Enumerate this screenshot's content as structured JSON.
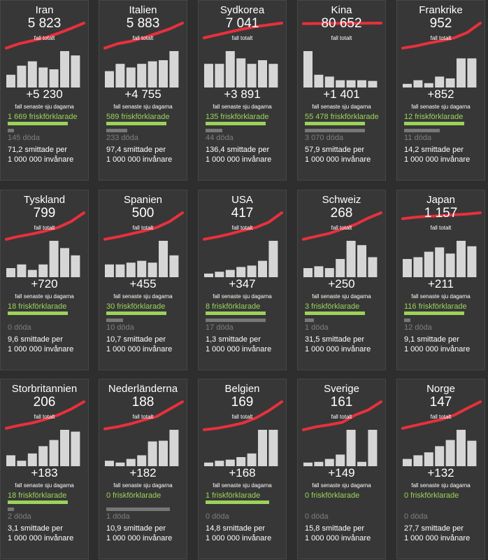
{
  "labels": {
    "total": "fall totalt",
    "week": "fall senaste sju dagarna",
    "recovered_suffix": "friskförklarade",
    "deaths_suffix": "döda",
    "rate_suffix": "smittade per",
    "rate_base": "1 000 000 invånare"
  },
  "colors": {
    "trend": "#e8303d",
    "bar": "#d6d6d6",
    "recovered": "#9bd35a",
    "deaths": "#777777",
    "card": "#373737",
    "background": "#2e2e2e"
  },
  "chart_data": [
    {
      "type": "bar",
      "country": "Iran",
      "total": "5 823",
      "week_new": "+5 230",
      "recovered": "1 669",
      "deaths": "145",
      "rate": "71,2",
      "rec_frac": 0.8,
      "death_frac": 0.08,
      "trend": [
        0.15,
        0.3,
        0.4,
        0.5,
        0.65,
        0.82,
        1.0
      ],
      "values": [
        0.35,
        0.6,
        0.72,
        0.55,
        0.5,
        1.0,
        0.88
      ]
    },
    {
      "type": "bar",
      "country": "Italien",
      "total": "5 883",
      "week_new": "+4 755",
      "recovered": "589",
      "deaths": "233",
      "rate": "97,4",
      "rec_frac": 0.8,
      "death_frac": 0.28,
      "trend": [
        0.15,
        0.3,
        0.38,
        0.5,
        0.65,
        0.8,
        1.0
      ],
      "values": [
        0.45,
        0.65,
        0.55,
        0.65,
        0.72,
        0.75,
        1.0
      ]
    },
    {
      "type": "bar",
      "country": "Sydkorea",
      "total": "7 041",
      "week_new": "+3 891",
      "recovered": "135",
      "deaths": "44",
      "rate": "136,4",
      "rec_frac": 0.8,
      "death_frac": 0.22,
      "trend": [
        0.5,
        0.6,
        0.7,
        0.8,
        0.88,
        0.94,
        1.0
      ],
      "values": [
        0.65,
        0.65,
        1.0,
        0.8,
        0.65,
        0.75,
        0.65
      ]
    },
    {
      "type": "bar",
      "country": "Kina",
      "total": "80 652",
      "week_new": "+1 401",
      "recovered": "55 478",
      "deaths": "3 070",
      "rate": "57,9",
      "rec_frac": 0.8,
      "death_frac": 0.8,
      "trend": [
        0.98,
        0.985,
        0.99,
        0.993,
        0.996,
        0.998,
        1.0
      ],
      "values": [
        1.0,
        0.35,
        0.3,
        0.2,
        0.2,
        0.2,
        0.18
      ]
    },
    {
      "type": "bar",
      "country": "Frankrike",
      "total": "952",
      "week_new": "+852",
      "recovered": "12",
      "deaths": "11",
      "rate": "14,2",
      "rec_frac": 0.8,
      "death_frac": 0.48,
      "trend": [
        0.15,
        0.22,
        0.32,
        0.4,
        0.5,
        0.68,
        1.0
      ],
      "values": [
        0.1,
        0.2,
        0.12,
        0.3,
        0.25,
        0.8,
        0.8
      ]
    },
    {
      "type": "bar",
      "country": "Tyskland",
      "total": "799",
      "week_new": "+720",
      "recovered": "18",
      "deaths": "0",
      "rate": "9,6",
      "rec_frac": 0.8,
      "death_frac": 0.0,
      "trend": [
        0.1,
        0.2,
        0.28,
        0.38,
        0.5,
        0.7,
        1.0
      ],
      "values": [
        0.25,
        0.35,
        0.2,
        0.35,
        1.0,
        0.8,
        0.6
      ]
    },
    {
      "type": "bar",
      "country": "Spanien",
      "total": "500",
      "week_new": "+455",
      "recovered": "30",
      "deaths": "10",
      "rate": "10,7",
      "rec_frac": 0.8,
      "death_frac": 0.22,
      "trend": [
        0.1,
        0.18,
        0.28,
        0.38,
        0.5,
        0.7,
        1.0
      ],
      "values": [
        0.35,
        0.35,
        0.4,
        0.45,
        0.4,
        1.0,
        0.6
      ]
    },
    {
      "type": "bar",
      "country": "USA",
      "total": "417",
      "week_new": "+347",
      "recovered": "8",
      "deaths": "17",
      "rate": "1,3",
      "rec_frac": 0.8,
      "death_frac": 0.8,
      "trend": [
        0.1,
        0.18,
        0.28,
        0.4,
        0.5,
        0.68,
        1.0
      ],
      "values": [
        0.1,
        0.15,
        0.2,
        0.28,
        0.32,
        0.45,
        1.0
      ]
    },
    {
      "type": "bar",
      "country": "Schweiz",
      "total": "268",
      "week_new": "+250",
      "recovered": "3",
      "deaths": "1",
      "rate": "31,5",
      "rec_frac": 0.8,
      "death_frac": 0.12,
      "trend": [
        0.1,
        0.2,
        0.3,
        0.45,
        0.6,
        0.82,
        1.0
      ],
      "values": [
        0.25,
        0.3,
        0.25,
        0.5,
        1.0,
        0.88,
        0.55
      ]
    },
    {
      "type": "bar",
      "country": "Japan",
      "total": "1 157",
      "week_new": "+211",
      "recovered": "116",
      "deaths": "12",
      "rate": "9,1",
      "rec_frac": 0.8,
      "death_frac": 0.08,
      "trend": [
        0.8,
        0.85,
        0.88,
        0.9,
        0.93,
        0.96,
        1.0
      ],
      "values": [
        0.5,
        0.55,
        0.7,
        0.82,
        0.65,
        1.0,
        0.85
      ]
    },
    {
      "type": "bar",
      "country": "Storbritannien",
      "total": "206",
      "week_new": "+183",
      "recovered": "18",
      "deaths": "2",
      "rate": "3,1",
      "rec_frac": 0.8,
      "death_frac": 0.08,
      "trend": [
        0.1,
        0.2,
        0.28,
        0.4,
        0.55,
        0.75,
        1.0
      ],
      "values": [
        0.3,
        0.15,
        0.35,
        0.55,
        0.72,
        1.0,
        0.95
      ]
    },
    {
      "type": "bar",
      "country": "Nederländerna",
      "total": "188",
      "week_new": "+182",
      "recovered": "0",
      "deaths": "1",
      "rate": "10,9",
      "rec_frac": 0.0,
      "death_frac": 0.85,
      "trend": [
        0.08,
        0.15,
        0.25,
        0.38,
        0.5,
        0.75,
        1.0
      ],
      "values": [
        0.15,
        0.1,
        0.2,
        0.3,
        0.68,
        0.7,
        1.0
      ]
    },
    {
      "type": "bar",
      "country": "Belgien",
      "total": "169",
      "week_new": "+168",
      "recovered": "1",
      "deaths": "0",
      "rate": "14,8",
      "rec_frac": 0.85,
      "death_frac": 0.0,
      "trend": [
        0.05,
        0.1,
        0.18,
        0.28,
        0.45,
        0.7,
        1.0
      ],
      "values": [
        0.1,
        0.15,
        0.18,
        0.25,
        0.35,
        1.0,
        1.0
      ]
    },
    {
      "type": "bar",
      "country": "Sverige",
      "total": "161",
      "week_new": "+149",
      "recovered": "0",
      "deaths": "0",
      "rate": "15,8",
      "rec_frac": 0.0,
      "death_frac": 0.0,
      "trend": [
        0.05,
        0.15,
        0.22,
        0.3,
        0.55,
        0.72,
        1.0
      ],
      "values": [
        0.1,
        0.12,
        0.2,
        0.32,
        1.0,
        0.12,
        1.0
      ]
    },
    {
      "type": "bar",
      "country": "Norge",
      "total": "147",
      "week_new": "+132",
      "recovered": "0",
      "deaths": "0",
      "rate": "27,7",
      "rec_frac": 0.0,
      "death_frac": 0.0,
      "trend": [
        0.1,
        0.2,
        0.3,
        0.4,
        0.55,
        0.78,
        1.0
      ],
      "values": [
        0.2,
        0.3,
        0.38,
        0.55,
        0.72,
        1.0,
        0.7
      ]
    }
  ]
}
